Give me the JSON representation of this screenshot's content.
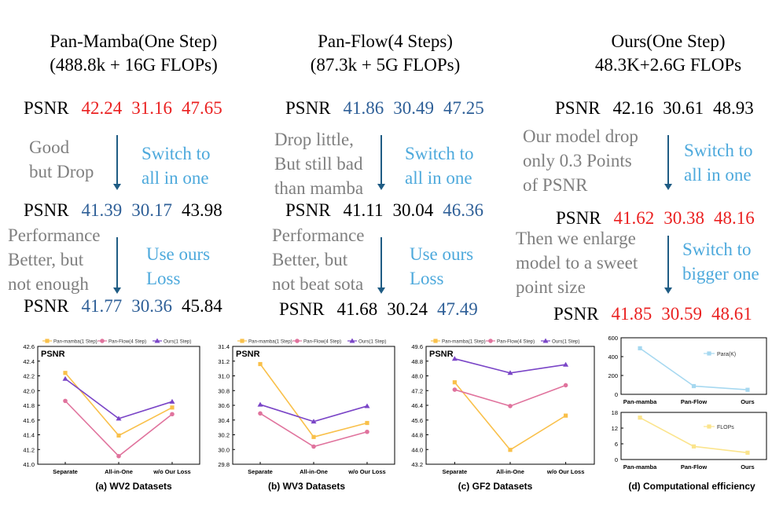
{
  "columns": [
    {
      "title1": "Pan-Mamba(One Step)",
      "title2": "(488.8k + 16G FLOPs)",
      "rows": [
        {
          "label": "PSNR",
          "values": [
            "42.24",
            "31.16",
            "47.65"
          ],
          "colors": [
            "red",
            "red",
            "red"
          ]
        },
        {
          "label": "PSNR",
          "values": [
            "41.39",
            "30.17",
            "43.98"
          ],
          "colors": [
            "blue",
            "blue",
            "black"
          ]
        },
        {
          "label": "PSNR",
          "values": [
            "41.77",
            "30.36",
            "45.84"
          ],
          "colors": [
            "blue",
            "blue",
            "black"
          ]
        }
      ],
      "notes": [
        [
          "Good",
          "but Drop"
        ],
        [
          "Performance",
          "Better,  but",
          "not enough"
        ]
      ],
      "switches": [
        [
          "Switch to",
          "all in one"
        ],
        [
          "Use ours",
          "Loss"
        ]
      ]
    },
    {
      "title1": "Pan-Flow(4 Steps)",
      "title2": "(87.3k + 5G FLOPs)",
      "rows": [
        {
          "label": "PSNR",
          "values": [
            "41.86",
            "30.49",
            "47.25"
          ],
          "colors": [
            "blue",
            "blue",
            "blue"
          ]
        },
        {
          "label": "PSNR",
          "values": [
            "41.11",
            "30.04",
            "46.36"
          ],
          "colors": [
            "black",
            "black",
            "blue"
          ]
        },
        {
          "label": "PSNR",
          "values": [
            "41.68",
            "30.24",
            "47.49"
          ],
          "colors": [
            "black",
            "black",
            "blue"
          ]
        }
      ],
      "notes": [
        [
          "Drop little,",
          "But still bad",
          "than mamba"
        ],
        [
          "Performance",
          "Better,  but",
          "not beat sota"
        ]
      ],
      "switches": [
        [
          "Switch to",
          "all in one"
        ],
        [
          "Use ours",
          "Loss"
        ]
      ]
    },
    {
      "title1": "Ours(One Step)",
      "title2": "48.3K+2.6G FLOPs",
      "rows": [
        {
          "label": "PSNR",
          "values": [
            "42.16",
            "30.61",
            "48.93"
          ],
          "colors": [
            "black",
            "black",
            "black"
          ]
        },
        {
          "label": "PSNR",
          "values": [
            "41.62",
            "30.38",
            "48.16"
          ],
          "colors": [
            "red",
            "red",
            "red"
          ]
        },
        {
          "label": "PSNR",
          "values": [
            "41.85",
            "30.59",
            "48.61"
          ],
          "colors": [
            "red",
            "red",
            "red"
          ]
        }
      ],
      "notes": [
        [
          "Our model drop",
          "only 0.3 Points",
          "of PSNR"
        ],
        [
          "Then we enlarge",
          "model to a sweet",
          "point size"
        ]
      ],
      "switches": [
        [
          "Switch to",
          "all in one"
        ],
        [
          "Switch to",
          "bigger one"
        ]
      ]
    }
  ],
  "colors": {
    "red": "#ea2121",
    "blue": "#2e5f97",
    "gray": "#7f7f7f",
    "cyan": "#4da9dc",
    "arrow": "#1f5c84",
    "s1": "#f9c04a",
    "s2": "#e0739d",
    "s3": "#7a45c7",
    "para": "#a6d8f0",
    "flops": "#fbe48c"
  },
  "chart_data": [
    {
      "type": "line",
      "title": "PSNR",
      "caption": "(a) WV2 Datasets",
      "categories": [
        "Separate",
        "All-in-One",
        "w/o Our Loss"
      ],
      "ylim": [
        41.0,
        42.6
      ],
      "yticks": [
        "41.0",
        "41.2",
        "41.4",
        "41.6",
        "41.8",
        "42.0",
        "42.2",
        "42.4",
        "42.6"
      ],
      "series": [
        {
          "name": "Pan-mamba(1 Step)",
          "values": [
            42.24,
            41.39,
            41.77
          ]
        },
        {
          "name": "Pan-Flow(4 Step)",
          "values": [
            41.86,
            41.11,
            41.68
          ]
        },
        {
          "name": "Ours(1 Step)",
          "values": [
            42.16,
            41.62,
            41.85
          ]
        }
      ]
    },
    {
      "type": "line",
      "title": "PSNR",
      "caption": "(b) WV3 Datasets",
      "categories": [
        "Separate",
        "All-in-One",
        "w/o Our Loss"
      ],
      "ylim": [
        29.8,
        31.4
      ],
      "yticks": [
        "29.8",
        "30.0",
        "30.2",
        "30.4",
        "30.6",
        "30.8",
        "31.0",
        "31.2",
        "31.4"
      ],
      "series": [
        {
          "name": "Pan-mamba(1 Step)",
          "values": [
            31.16,
            30.17,
            30.36
          ]
        },
        {
          "name": "Pan-Flow(4 Step)",
          "values": [
            30.49,
            30.04,
            30.24
          ]
        },
        {
          "name": "Ours(1 Step)",
          "values": [
            30.61,
            30.38,
            30.59
          ]
        }
      ]
    },
    {
      "type": "line",
      "title": "PSNR",
      "caption": "(c) GF2 Datasets",
      "categories": [
        "Separate",
        "All-in-One",
        "w/o Our Loss"
      ],
      "ylim": [
        43.2,
        49.6
      ],
      "yticks": [
        "43.2",
        "44.0",
        "44.8",
        "45.6",
        "46.4",
        "47.2",
        "48.0",
        "48.8",
        "49.6"
      ],
      "series": [
        {
          "name": "Pan-mamba(1 Step)",
          "values": [
            47.65,
            43.98,
            45.84
          ]
        },
        {
          "name": "Pan-Flow(4 Step)",
          "values": [
            47.25,
            46.36,
            47.49
          ]
        },
        {
          "name": "Ours(1 Step)",
          "values": [
            48.93,
            48.16,
            48.61
          ]
        }
      ]
    },
    {
      "type": "line",
      "caption": "(d) Computational efficiency",
      "categories": [
        "Pan-mamba",
        "Pan-Flow",
        "Ours"
      ],
      "panels": [
        {
          "name": "Para(K)",
          "ylim": [
            0,
            600
          ],
          "yticks": [
            "0",
            "200",
            "400",
            "600"
          ],
          "values": [
            488.8,
            87.3,
            48.3
          ]
        },
        {
          "name": "FLOPs",
          "ylim": [
            0,
            18
          ],
          "yticks": [
            "0",
            "6",
            "12",
            "18"
          ],
          "values": [
            16,
            5,
            2.6
          ]
        }
      ]
    }
  ]
}
